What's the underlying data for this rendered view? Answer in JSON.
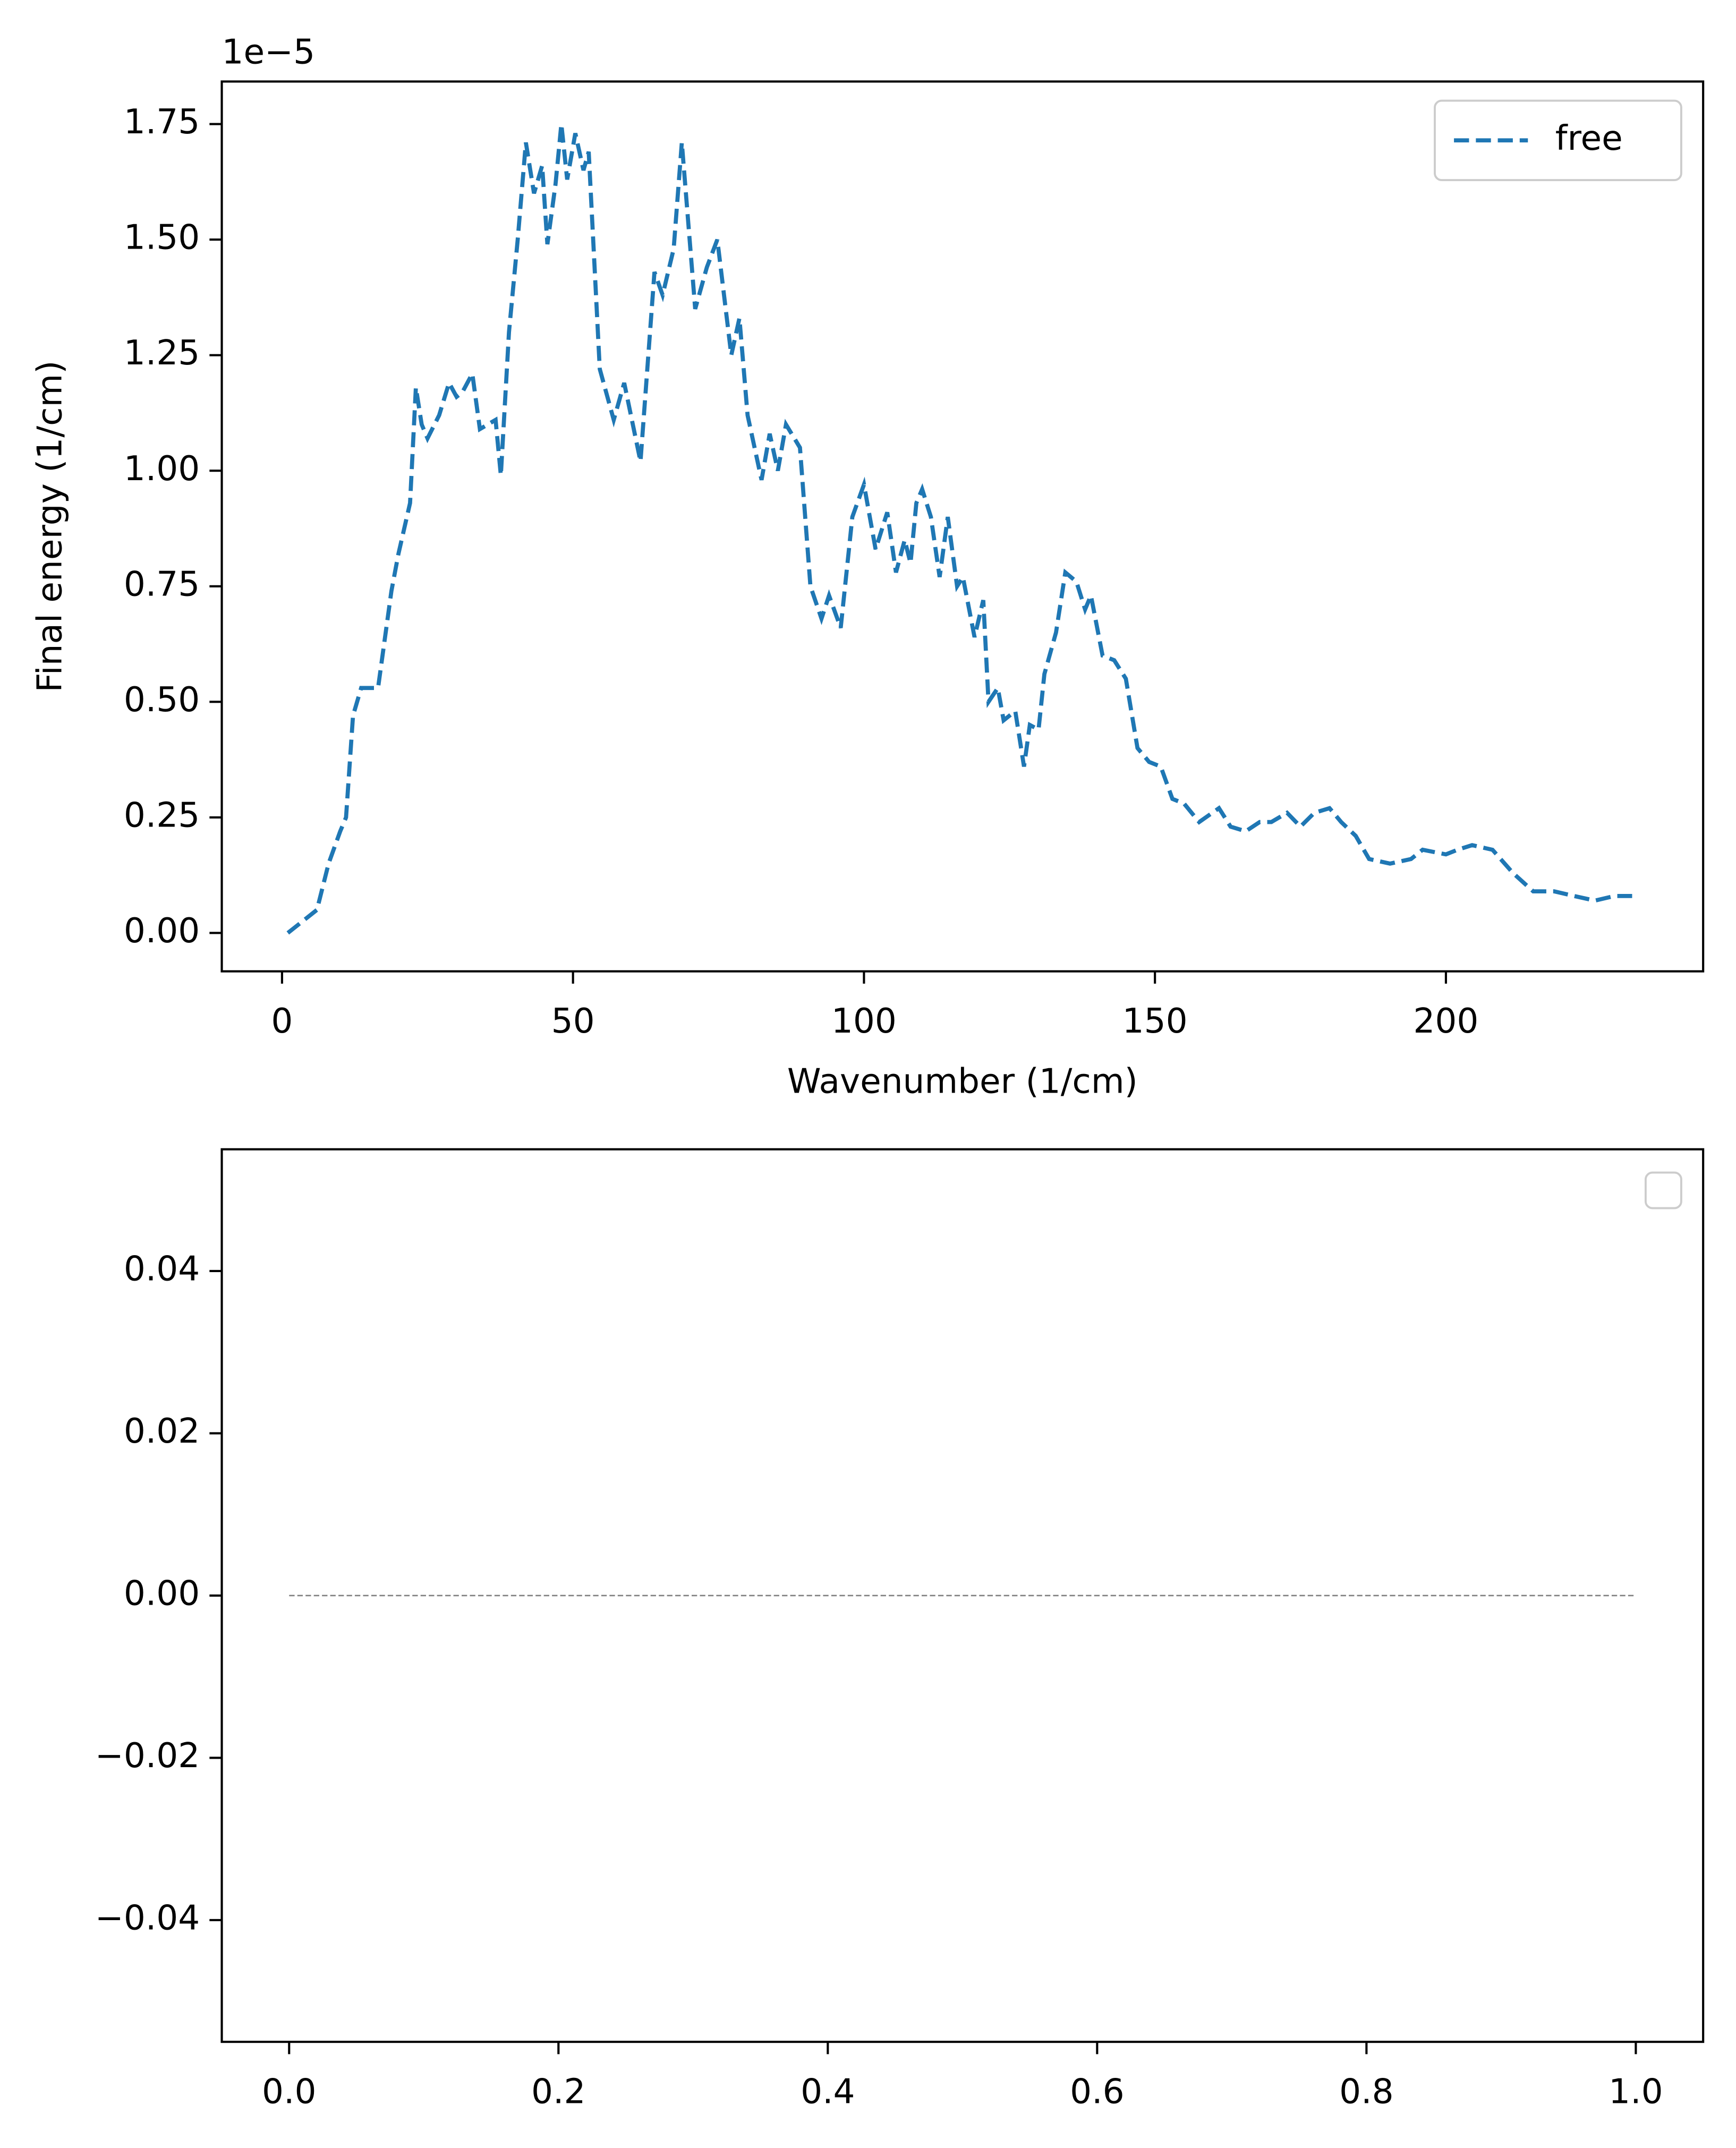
{
  "chart_data": [
    {
      "type": "line",
      "x": [
        1,
        2,
        4,
        6,
        8,
        10,
        11,
        12.2,
        13.6,
        16.5,
        18.8,
        20,
        22,
        23,
        24,
        25,
        27,
        28.7,
        30,
        31,
        32.7,
        34,
        36.7,
        37.6,
        39,
        40.5,
        41.9,
        43.3,
        44.7,
        45.6,
        47,
        48,
        49,
        50.4,
        51.8,
        52.7,
        54.6,
        57,
        58.8,
        61.6,
        64,
        65.4,
        67.3,
        68.7,
        71,
        73,
        74.8,
        77.2,
        78.6,
        80,
        82.4,
        83.8,
        85.2,
        86.6,
        89,
        90.8,
        92.7,
        94,
        96,
        98,
        100,
        102,
        104,
        105.5,
        107,
        108,
        109,
        110,
        111.5,
        113,
        114.4,
        116,
        117,
        119,
        120.5,
        121.4,
        123,
        124,
        126,
        127.5,
        128.5,
        130,
        131,
        133,
        134.6,
        136.5,
        138,
        139,
        141,
        143,
        145,
        147,
        149,
        151,
        153,
        155,
        157.6,
        161,
        163,
        165.6,
        168,
        170,
        172.7,
        175,
        177.4,
        180,
        182,
        184.5,
        186.8,
        190.4,
        194,
        196,
        200,
        202,
        204.5,
        208,
        211.5,
        215,
        218.6,
        222,
        225.6,
        229,
        232
      ],
      "series": [
        {
          "name": "free",
          "color": "#1f77b4",
          "values": [
            0,
            0.01,
            0.03,
            0.05,
            0.15,
            0.22,
            0.25,
            0.47,
            0.53,
            0.53,
            0.74,
            0.82,
            0.93,
            1.18,
            1.1,
            1.07,
            1.12,
            1.19,
            1.16,
            1.17,
            1.21,
            1.09,
            1.11,
            0.99,
            1.3,
            1.5,
            1.71,
            1.6,
            1.66,
            1.49,
            1.62,
            1.75,
            1.63,
            1.73,
            1.65,
            1.69,
            1.22,
            1.11,
            1.19,
            1.02,
            1.43,
            1.38,
            1.48,
            1.71,
            1.35,
            1.44,
            1.5,
            1.25,
            1.33,
            1.12,
            0.98,
            1.08,
            1.0,
            1.1,
            1.05,
            0.75,
            0.68,
            0.73,
            0.66,
            0.9,
            0.97,
            0.83,
            0.91,
            0.78,
            0.85,
            0.8,
            0.93,
            0.96,
            0.9,
            0.77,
            0.9,
            0.75,
            0.77,
            0.64,
            0.72,
            0.5,
            0.53,
            0.46,
            0.48,
            0.36,
            0.45,
            0.44,
            0.56,
            0.65,
            0.78,
            0.76,
            0.7,
            0.73,
            0.6,
            0.59,
            0.55,
            0.4,
            0.37,
            0.36,
            0.29,
            0.28,
            0.24,
            0.27,
            0.23,
            0.22,
            0.24,
            0.24,
            0.26,
            0.23,
            0.26,
            0.27,
            0.24,
            0.21,
            0.16,
            0.15,
            0.16,
            0.18,
            0.17,
            0.18,
            0.19,
            0.18,
            0.13,
            0.09,
            0.09,
            0.08,
            0.07,
            0.08,
            0.08
          ]
        }
      ],
      "xlabel": "Wavenumber (1/cm)",
      "ylabel": "Final energy (1/cm)",
      "y_offset_text": "1e−5",
      "xlim": [
        -10.35,
        244.2
      ],
      "ylim": [
        -0.083,
        1.842
      ],
      "xticks": [
        0,
        50,
        100,
        150,
        200
      ],
      "yticks": [
        {
          "value": 0,
          "label": "0.00"
        },
        {
          "value": 0.25,
          "label": "0.25"
        },
        {
          "value": 0.5,
          "label": "0.50"
        },
        {
          "value": 0.75,
          "label": "0.75"
        },
        {
          "value": 1,
          "label": "1.00"
        },
        {
          "value": 1.25,
          "label": "1.25"
        },
        {
          "value": 1.5,
          "label": "1.50"
        },
        {
          "value": 1.75,
          "label": "1.75"
        }
      ],
      "linestyle": "dashed",
      "legend": "upper right",
      "grid": false
    },
    {
      "type": "line",
      "x": [
        0,
        1
      ],
      "series": [
        {
          "color": "gray",
          "values": [
            0,
            0
          ]
        }
      ],
      "xlim": [
        -0.05,
        1.05
      ],
      "ylim": [
        -0.055,
        0.055
      ],
      "xticks": [
        {
          "value": 0,
          "label": "0.0"
        },
        {
          "value": 0.2,
          "label": "0.2"
        },
        {
          "value": 0.4,
          "label": "0.4"
        },
        {
          "value": 0.6,
          "label": "0.6"
        },
        {
          "value": 0.8,
          "label": "0.8"
        },
        {
          "value": 1,
          "label": "1.0"
        }
      ],
      "yticks": [
        {
          "value": -0.04,
          "label": "−0.04"
        },
        {
          "value": -0.02,
          "label": "−0.02"
        },
        {
          "value": 0,
          "label": "0.00"
        },
        {
          "value": 0.02,
          "label": "0.02"
        },
        {
          "value": 0.04,
          "label": "0.04"
        }
      ],
      "linestyle": "thin-dashed",
      "legend": "upper right",
      "grid": false
    }
  ]
}
